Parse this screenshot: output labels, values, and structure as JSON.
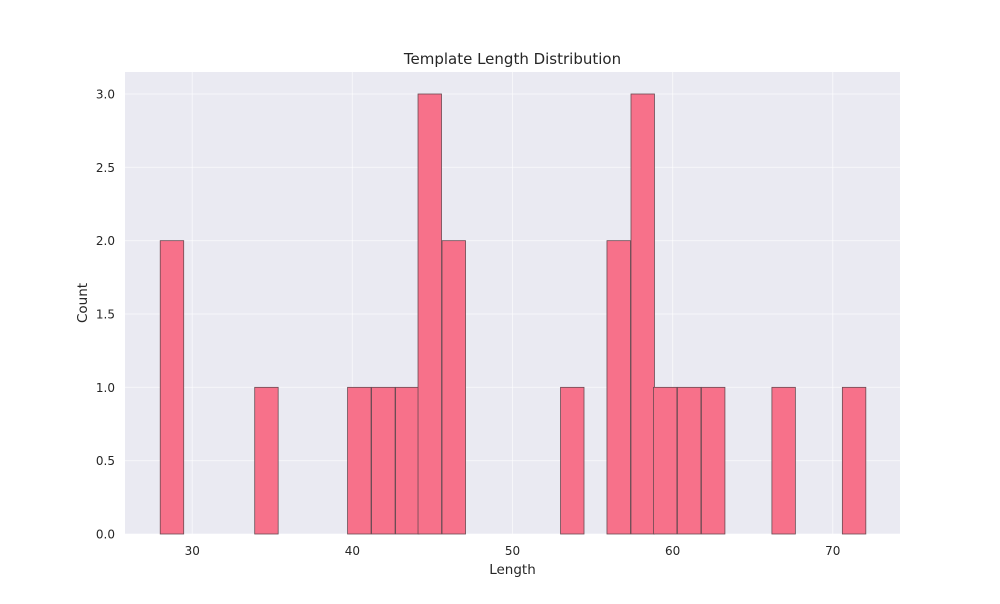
{
  "chart_data": {
    "type": "bar",
    "title": "Template Length Distribution",
    "xlabel": "Length",
    "ylabel": "Count",
    "xlim": [
      25.8,
      74.2
    ],
    "ylim": [
      0,
      3.15
    ],
    "xticks": [
      30,
      40,
      50,
      60,
      70
    ],
    "yticks": [
      0.0,
      0.5,
      1.0,
      1.5,
      2.0,
      2.5,
      3.0
    ],
    "grid": true,
    "bin_width": 1.466,
    "bins": [
      {
        "x0": 28.0,
        "count": 2
      },
      {
        "x0": 33.9,
        "count": 1
      },
      {
        "x0": 39.7,
        "count": 1
      },
      {
        "x0": 41.2,
        "count": 1
      },
      {
        "x0": 42.7,
        "count": 1
      },
      {
        "x0": 44.1,
        "count": 3
      },
      {
        "x0": 45.6,
        "count": 2
      },
      {
        "x0": 53.0,
        "count": 1
      },
      {
        "x0": 55.9,
        "count": 2
      },
      {
        "x0": 57.4,
        "count": 3
      },
      {
        "x0": 58.8,
        "count": 1
      },
      {
        "x0": 60.3,
        "count": 1
      },
      {
        "x0": 61.8,
        "count": 1
      },
      {
        "x0": 66.2,
        "count": 1
      },
      {
        "x0": 70.6,
        "count": 1
      }
    ],
    "colors": {
      "bar": "#f7718a",
      "plot_background": "#eaeaf2"
    }
  }
}
